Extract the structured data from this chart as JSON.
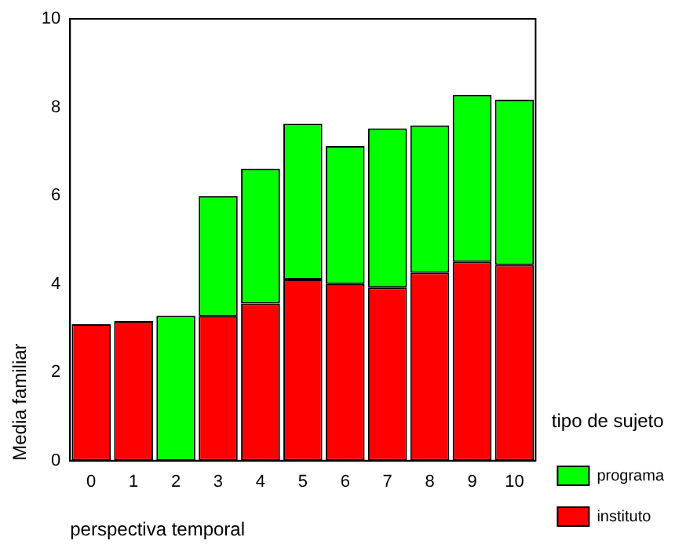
{
  "chart_data": {
    "type": "bar",
    "stacked": true,
    "xlabel": "perspectiva temporal",
    "ylabel": "Media familiar",
    "legend_title": "tipo de sujeto",
    "categories": [
      "0",
      "1",
      "2",
      "3",
      "4",
      "5",
      "6",
      "7",
      "8",
      "9",
      "10"
    ],
    "series": [
      {
        "name": "instituto",
        "color": "#ff0000",
        "values": [
          3.09,
          3.16,
          null,
          3.27,
          3.56,
          4.1,
          4.0,
          3.92,
          4.25,
          4.5,
          4.43
        ]
      },
      {
        "name": "programa",
        "color": "#00ff00",
        "values": [
          null,
          null,
          3.28,
          2.72,
          3.05,
          3.53,
          3.12,
          3.6,
          3.34,
          3.78,
          3.74
        ]
      }
    ],
    "ylim": [
      0,
      10
    ],
    "yticks": [
      0,
      2,
      4,
      6,
      8,
      10
    ],
    "grid": false,
    "legend": "right"
  }
}
